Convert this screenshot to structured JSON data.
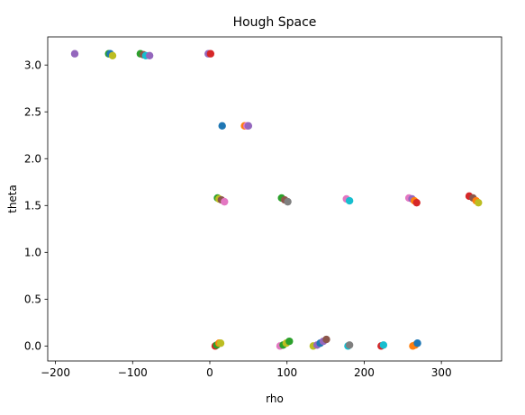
{
  "chart_data": {
    "type": "scatter",
    "title": "Hough Space",
    "xlabel": "rho",
    "ylabel": "theta",
    "xlim": [
      -210,
      378
    ],
    "ylim": [
      -0.16,
      3.3
    ],
    "xticks": [
      -200,
      -100,
      0,
      100,
      200,
      300
    ],
    "xtick_labels": [
      "−200",
      "−100",
      "0",
      "100",
      "200",
      "300"
    ],
    "yticks": [
      0.0,
      0.5,
      1.0,
      1.5,
      2.0,
      2.5,
      3.0
    ],
    "ytick_labels": [
      "0.0",
      "0.5",
      "1.0",
      "1.5",
      "2.0",
      "2.5",
      "3.0"
    ],
    "grid": false,
    "legend": "none",
    "points": [
      {
        "x": -175,
        "y": 3.12,
        "color": "#9467bd"
      },
      {
        "x": -131,
        "y": 3.12,
        "color": "#2ca02c"
      },
      {
        "x": -129,
        "y": 3.12,
        "color": "#1f77b4"
      },
      {
        "x": -126,
        "y": 3.1,
        "color": "#bcbd22"
      },
      {
        "x": -90,
        "y": 3.12,
        "color": "#2ca02c"
      },
      {
        "x": -86,
        "y": 3.11,
        "color": "#8c564b"
      },
      {
        "x": -83,
        "y": 3.1,
        "color": "#17becf"
      },
      {
        "x": -78,
        "y": 3.1,
        "color": "#9467bd"
      },
      {
        "x": -2,
        "y": 3.12,
        "color": "#9467bd"
      },
      {
        "x": 1,
        "y": 3.12,
        "color": "#d62728"
      },
      {
        "x": 16,
        "y": 2.35,
        "color": "#1f77b4"
      },
      {
        "x": 45,
        "y": 2.35,
        "color": "#ff7f0e"
      },
      {
        "x": 48,
        "y": 2.35,
        "color": "#e377c2"
      },
      {
        "x": 50,
        "y": 2.35,
        "color": "#9467bd"
      },
      {
        "x": 10,
        "y": 1.58,
        "color": "#2ca02c"
      },
      {
        "x": 12,
        "y": 1.57,
        "color": "#bcbd22"
      },
      {
        "x": 15,
        "y": 1.56,
        "color": "#8c564b"
      },
      {
        "x": 19,
        "y": 1.54,
        "color": "#e377c2"
      },
      {
        "x": 93,
        "y": 1.58,
        "color": "#2ca02c"
      },
      {
        "x": 97,
        "y": 1.56,
        "color": "#8c564b"
      },
      {
        "x": 101,
        "y": 1.54,
        "color": "#7f7f7f"
      },
      {
        "x": 177,
        "y": 1.57,
        "color": "#e377c2"
      },
      {
        "x": 181,
        "y": 1.55,
        "color": "#17becf"
      },
      {
        "x": 258,
        "y": 1.58,
        "color": "#e377c2"
      },
      {
        "x": 262,
        "y": 1.57,
        "color": "#9467bd"
      },
      {
        "x": 265,
        "y": 1.55,
        "color": "#ff7f0e"
      },
      {
        "x": 268,
        "y": 1.53,
        "color": "#d62728"
      },
      {
        "x": 336,
        "y": 1.6,
        "color": "#d62728"
      },
      {
        "x": 341,
        "y": 1.58,
        "color": "#8c564b"
      },
      {
        "x": 345,
        "y": 1.55,
        "color": "#ff7f0e"
      },
      {
        "x": 348,
        "y": 1.53,
        "color": "#bcbd22"
      },
      {
        "x": 7,
        "y": 0.0,
        "color": "#d62728"
      },
      {
        "x": 9,
        "y": 0.01,
        "color": "#2ca02c"
      },
      {
        "x": 12,
        "y": 0.03,
        "color": "#ff7f0e"
      },
      {
        "x": 14,
        "y": 0.03,
        "color": "#bcbd22"
      },
      {
        "x": 91,
        "y": 0.0,
        "color": "#e377c2"
      },
      {
        "x": 95,
        "y": 0.01,
        "color": "#2ca02c"
      },
      {
        "x": 99,
        "y": 0.03,
        "color": "#bcbd22"
      },
      {
        "x": 103,
        "y": 0.05,
        "color": "#2ca02c"
      },
      {
        "x": 134,
        "y": 0.0,
        "color": "#bcbd22"
      },
      {
        "x": 139,
        "y": 0.01,
        "color": "#9467bd"
      },
      {
        "x": 143,
        "y": 0.03,
        "color": "#1f77b4"
      },
      {
        "x": 147,
        "y": 0.05,
        "color": "#9467bd"
      },
      {
        "x": 151,
        "y": 0.07,
        "color": "#8c564b"
      },
      {
        "x": 179,
        "y": 0.0,
        "color": "#17becf"
      },
      {
        "x": 181,
        "y": 0.01,
        "color": "#7f7f7f"
      },
      {
        "x": 222,
        "y": 0.0,
        "color": "#d62728"
      },
      {
        "x": 225,
        "y": 0.01,
        "color": "#17becf"
      },
      {
        "x": 263,
        "y": 0.0,
        "color": "#ff7f0e"
      },
      {
        "x": 266,
        "y": 0.01,
        "color": "#ff7f0e"
      },
      {
        "x": 269,
        "y": 0.03,
        "color": "#1f77b4"
      }
    ]
  }
}
